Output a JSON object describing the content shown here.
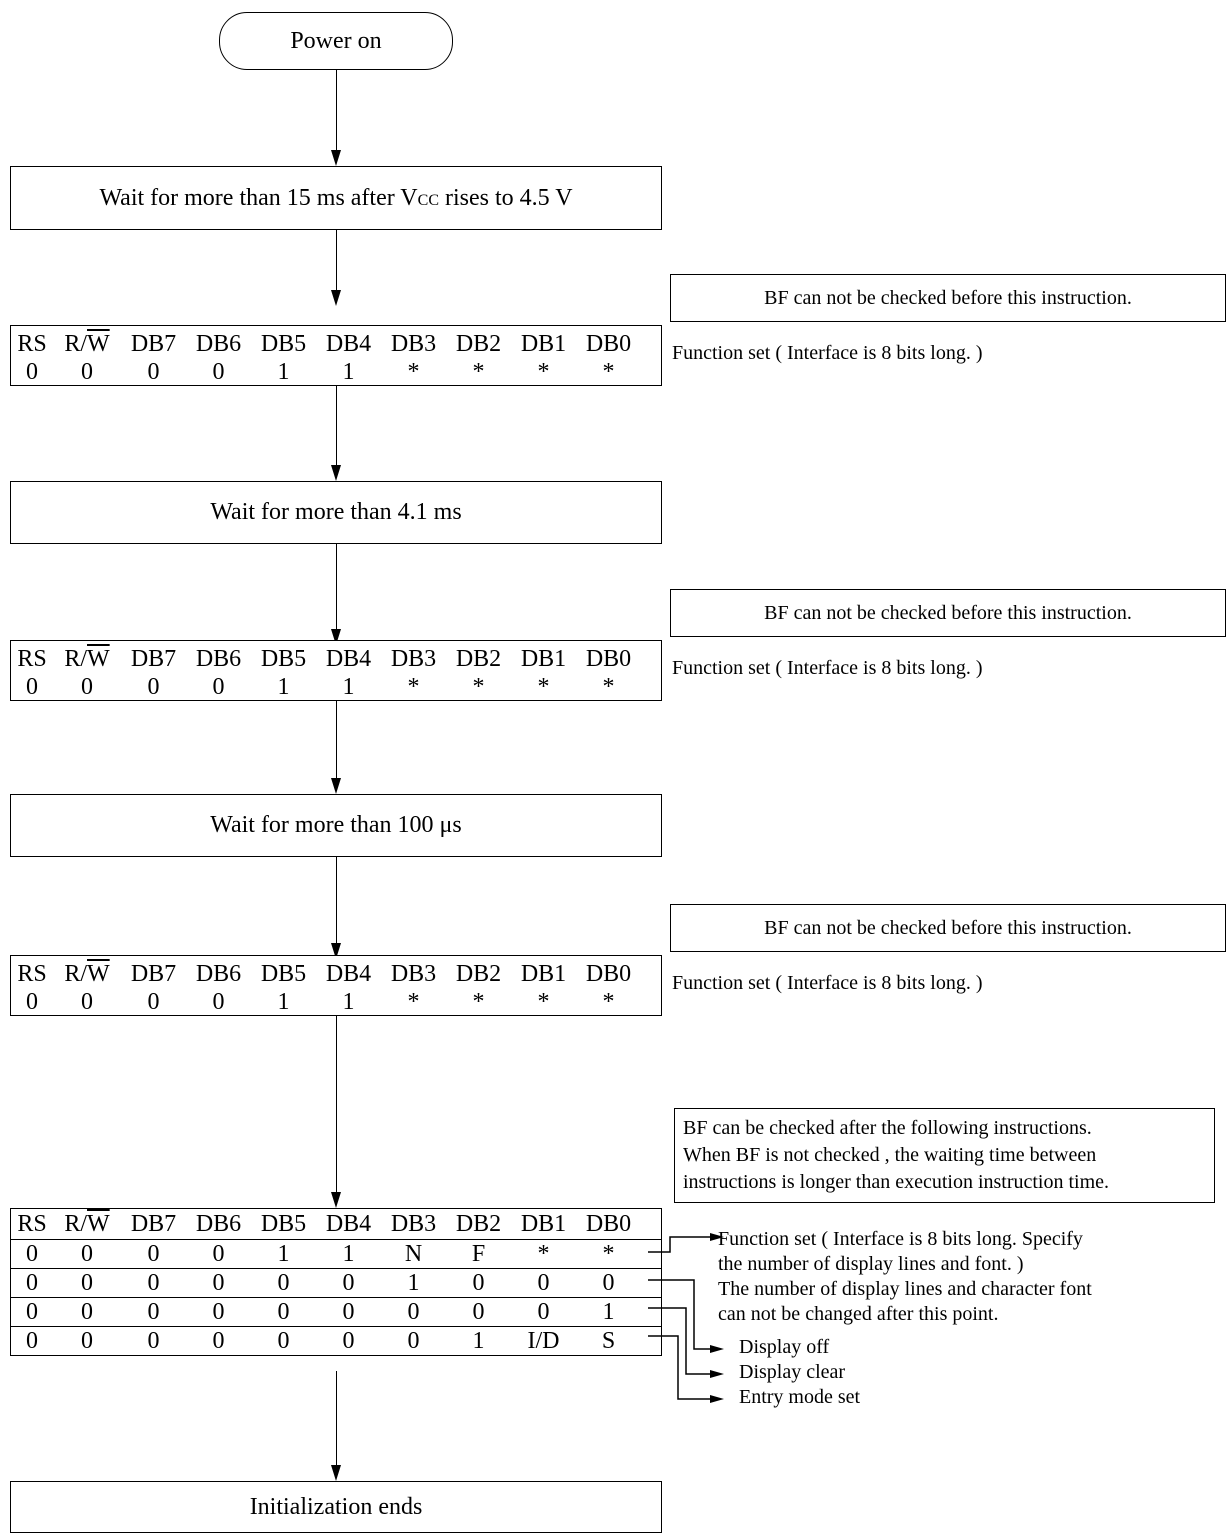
{
  "power_on": "Power on",
  "wait1": {
    "prefix": "Wait for more than 15 ms after V",
    "sub": "CC",
    "suffix": " rises to 4.5 V"
  },
  "wait2": "Wait for more than 4.1 ms",
  "wait3": "Wait for more than 100 μs",
  "end": "Initialization ends",
  "bf_not_checked": "BF can not be checked before this instruction.",
  "bf_checked": {
    "line1": "BF can  be checked after the following instructions.",
    "line2": "When BF is not checked , the waiting time between",
    "line3": "instructions is longer than execution instruction time."
  },
  "function_set_label": "Function set ( Interface is 8 bits long. )",
  "headers": {
    "rs": "RS",
    "rw_r": "R/",
    "rw_w": "W",
    "db7": "DB7",
    "db6": "DB6",
    "db5": "DB5",
    "db4": "DB4",
    "db3": "DB3",
    "db2": "DB2",
    "db1": "DB1",
    "db0": "DB0"
  },
  "func_row": [
    "0",
    "0",
    "0",
    "0",
    "1",
    "1",
    "*",
    "*",
    "*",
    "*"
  ],
  "final_rows": [
    [
      "0",
      "0",
      "0",
      "0",
      "1",
      "1",
      "N",
      "F",
      "*",
      "*"
    ],
    [
      "0",
      "0",
      "0",
      "0",
      "0",
      "0",
      "1",
      "0",
      "0",
      "0"
    ],
    [
      "0",
      "0",
      "0",
      "0",
      "0",
      "0",
      "0",
      "0",
      "0",
      "1"
    ],
    [
      "0",
      "0",
      "0",
      "0",
      "0",
      "0",
      "0",
      "1",
      "I/D",
      "S"
    ]
  ],
  "final_notes": {
    "func_line1": "Function set ( Interface is 8 bits long. Specify",
    "func_line2": "the number of display lines and  font. )",
    "func_line3": "The number of display lines and character font",
    "func_line4": "can not be changed after this point.",
    "display_off": "Display off",
    "display_clear": "Display clear",
    "entry_mode": "Entry mode set"
  }
}
